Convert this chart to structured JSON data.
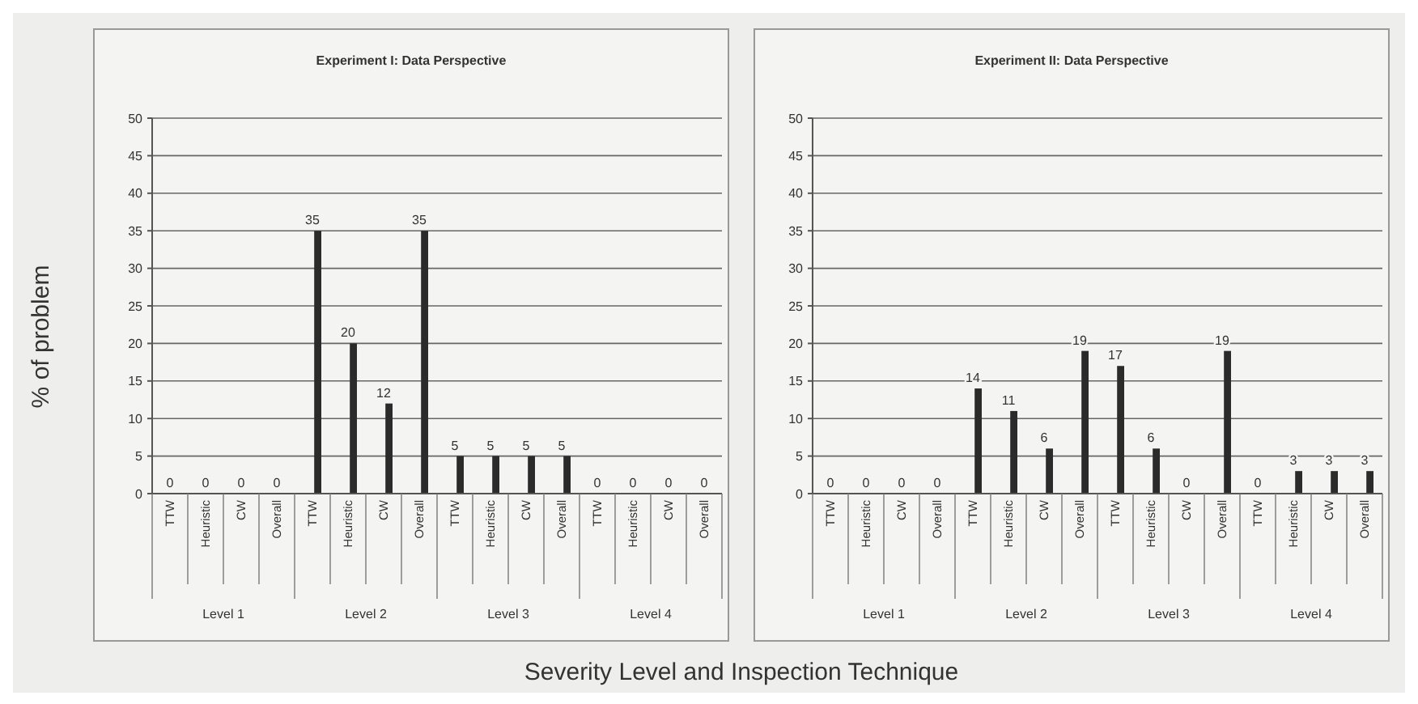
{
  "chart_data": [
    {
      "type": "bar",
      "title": "Experiment I: Data Perspective",
      "ylabel": "% of problem",
      "xlabel": "Severity Level and Inspection Technique",
      "categories": [
        "TTW",
        "Heuristic",
        "CW",
        "Overall",
        "TTW",
        "Heuristic",
        "CW",
        "Overall",
        "TTW",
        "Heuristic",
        "CW",
        "Overall",
        "TTW",
        "Heuristic",
        "CW",
        "Overall"
      ],
      "annotations": [
        "Level 1",
        "Level 2",
        "Level 3",
        "Level 4"
      ],
      "values": [
        0,
        0,
        0,
        0,
        35,
        20,
        12,
        35,
        5,
        5,
        5,
        5,
        0,
        0,
        0,
        0
      ],
      "color": "#2b2b2b",
      "ylim": [
        0,
        50
      ],
      "yticks": [
        0,
        5,
        10,
        15,
        20,
        25,
        30,
        35,
        40,
        45,
        50
      ],
      "grid": "y",
      "data_labels": true
    },
    {
      "type": "bar",
      "title": "Experiment II: Data Perspective",
      "categories": [
        "TTW",
        "Heuristic",
        "CW",
        "Overall",
        "TTW",
        "Heuristic",
        "CW",
        "Overall",
        "TTW",
        "Heuristic",
        "CW",
        "Overall",
        "TTW",
        "Heuristic",
        "CW",
        "Overall"
      ],
      "annotations": [
        "Level 1",
        "Level 2",
        "Level 3",
        "Level 4"
      ],
      "values": [
        0,
        0,
        0,
        0,
        14,
        11,
        6,
        19,
        17,
        6,
        0,
        19,
        0,
        3,
        3,
        3
      ],
      "color": "#2b2b2b",
      "ylim": [
        0,
        50
      ],
      "yticks": [
        0,
        5,
        10,
        15,
        20,
        25,
        30,
        35,
        40,
        45,
        50
      ],
      "grid": "y",
      "data_labels": true
    }
  ]
}
